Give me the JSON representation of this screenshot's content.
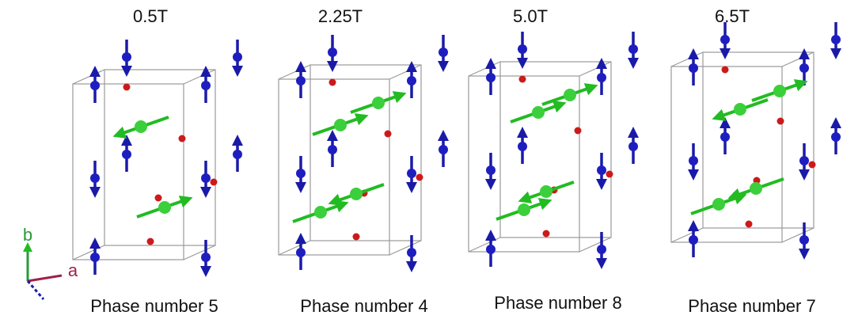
{
  "panels": [
    {
      "field": "0.5T",
      "phase": "Phase number 5"
    },
    {
      "field": "2.25T",
      "phase": "Phase number 4"
    },
    {
      "field": "5.0T",
      "phase": "Phase number 8"
    },
    {
      "field": "6.5T",
      "phase": "Phase number 7"
    }
  ],
  "axes": {
    "a": "a",
    "b": "b"
  }
}
